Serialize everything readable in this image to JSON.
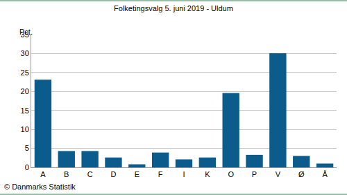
{
  "chart_data": {
    "type": "bar",
    "title": "Folketingsvalg 5. juni 2019 - Uldum",
    "y_label": "Pct.",
    "source": "© Danmarks Statistik",
    "categories": [
      "A",
      "B",
      "C",
      "D",
      "E",
      "F",
      "I",
      "K",
      "O",
      "P",
      "V",
      "Ø",
      "Å"
    ],
    "values": [
      23.1,
      4.3,
      4.3,
      2.6,
      0.8,
      3.9,
      2.1,
      2.6,
      19.6,
      3.3,
      30.1,
      3.0,
      1.0
    ],
    "color": "#0b5b8c",
    "ylim": [
      0,
      35
    ],
    "yticks": [
      0,
      5,
      10,
      15,
      20,
      25,
      30,
      35
    ],
    "grid": true
  }
}
